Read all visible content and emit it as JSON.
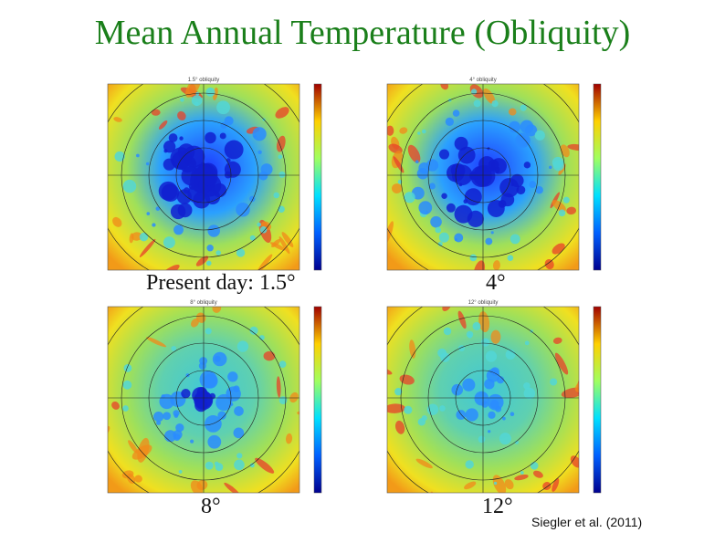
{
  "slide": {
    "title": "Mean Annual Temperature (Obliquity)",
    "credit": "Siegler et al. (2011)",
    "colors": {
      "title": "#1a7f1a"
    }
  },
  "panels": [
    {
      "caption": "Present day: 1.5°",
      "plot_title": "1.5° obliquity",
      "coldness": 0.85
    },
    {
      "caption": "4°",
      "plot_title": "4° obliquity",
      "coldness": 0.75
    },
    {
      "caption": "8°",
      "plot_title": "8° obliquity",
      "coldness": 0.45
    },
    {
      "caption": "12°",
      "plot_title": "12° obliquity",
      "coldness": 0.25
    }
  ]
}
